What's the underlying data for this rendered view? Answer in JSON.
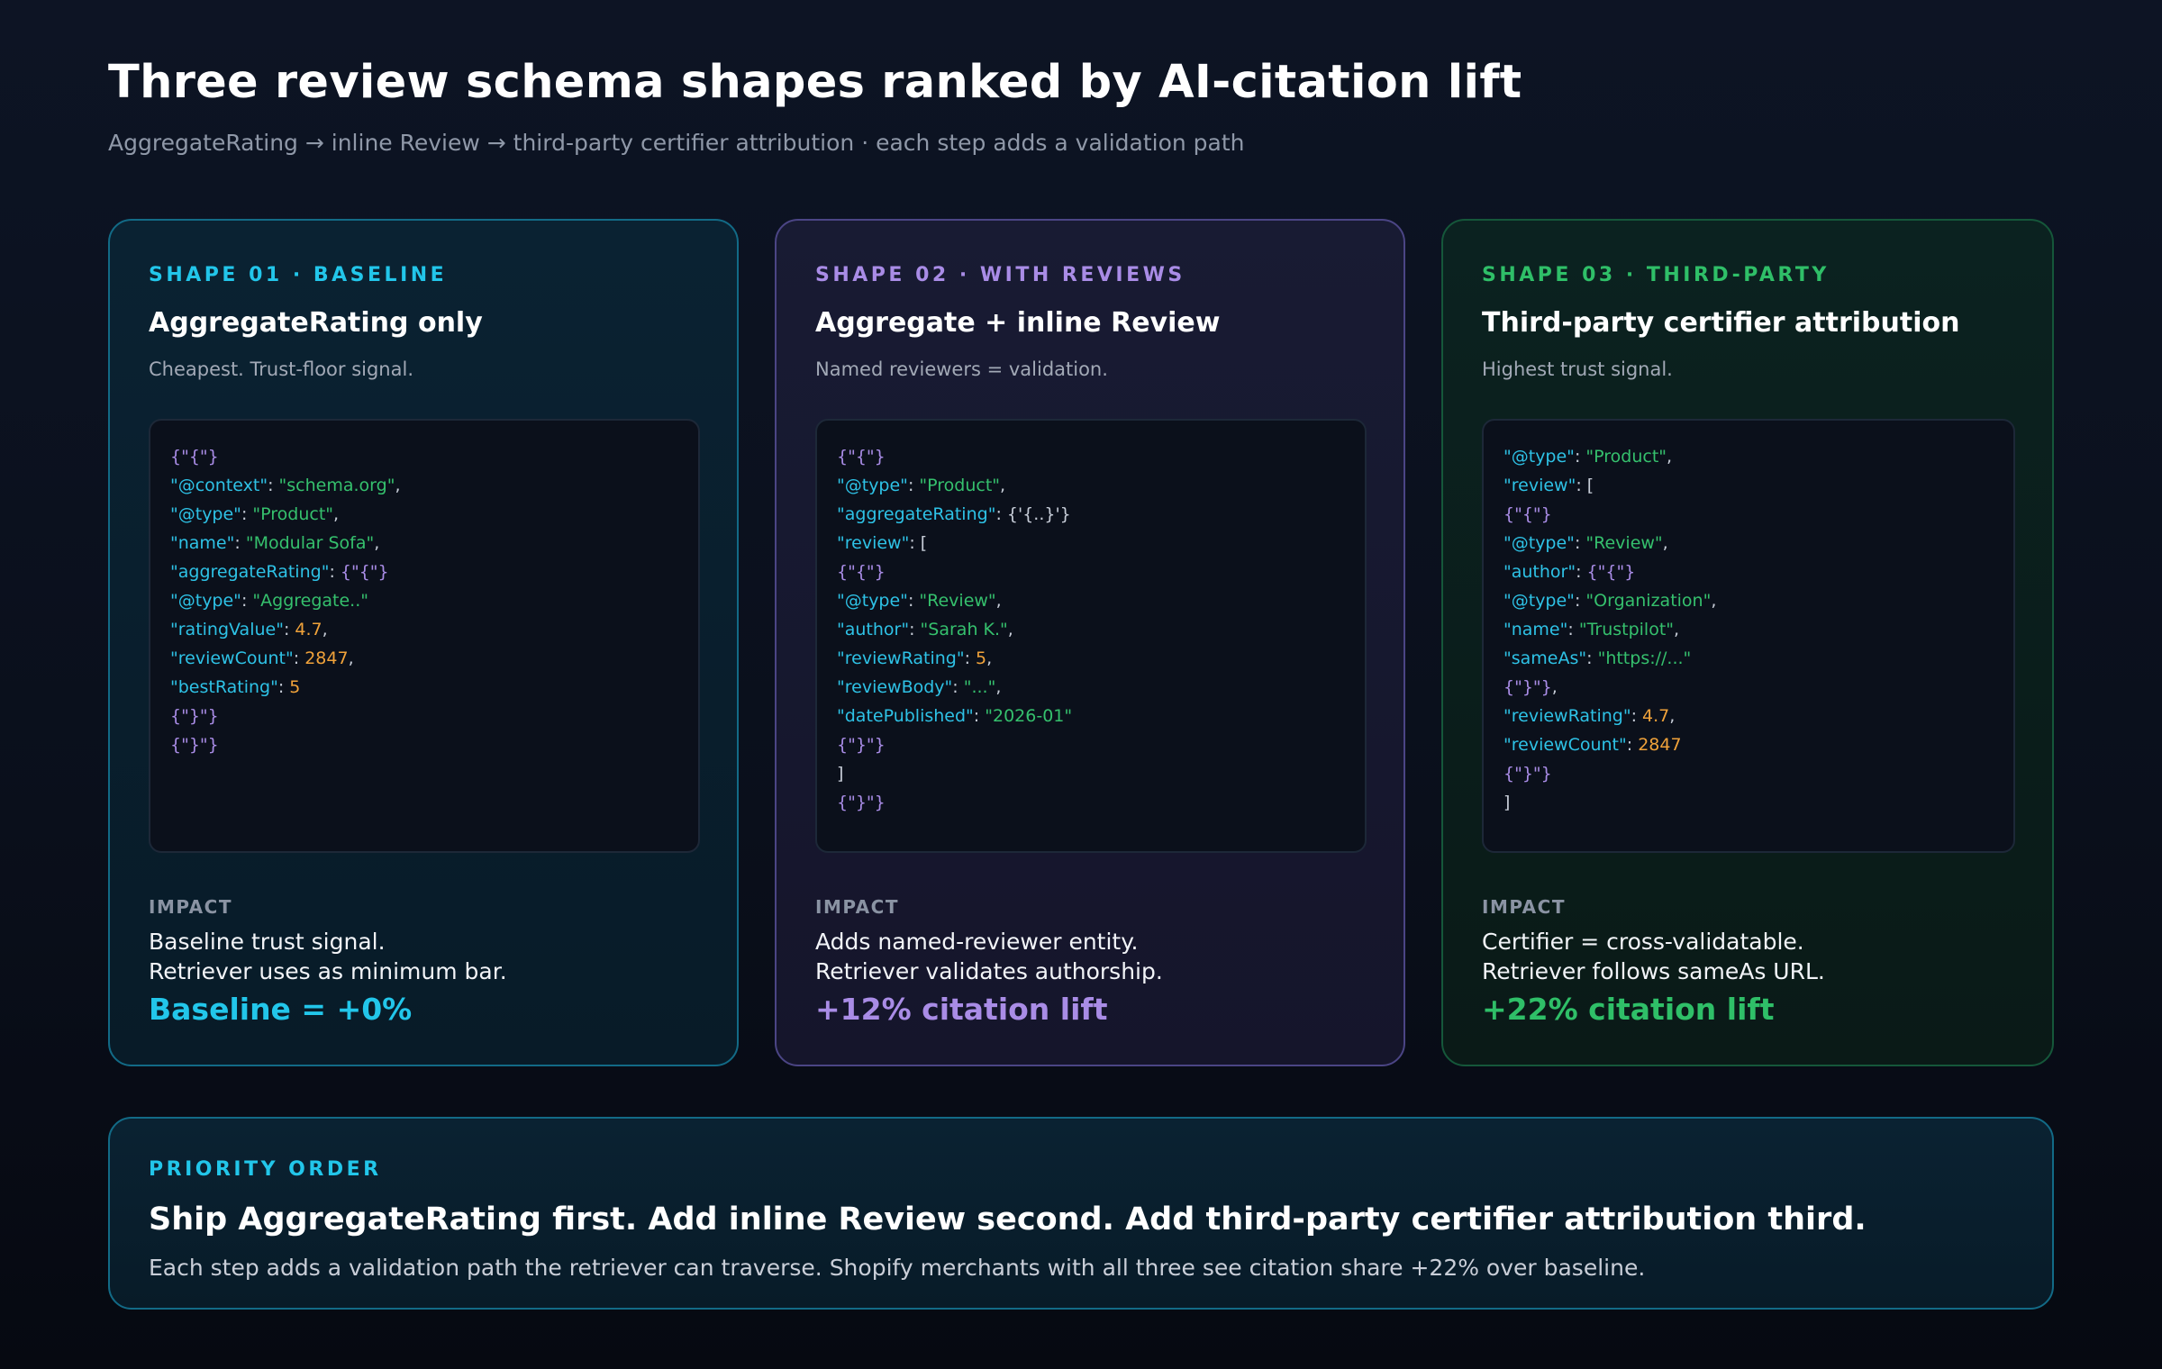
{
  "header": {
    "title": "Three review schema shapes ranked by AI-citation lift",
    "subtitle": "AggregateRating → inline Review → third-party certifier attribution · each step adds a validation path"
  },
  "colors": {
    "shape1_accent": "#22c6ea",
    "shape2_accent": "#a98ce6",
    "shape3_accent": "#2fbf68",
    "code_key": "#2ec2e6",
    "code_string": "#35c06d",
    "code_number": "#f0a23a",
    "code_brace": "#a98ce6"
  },
  "cards": [
    {
      "eyebrow": "SHAPE 01 · BASELINE",
      "title": "AggregateRating only",
      "description": "Cheapest. Trust-floor signal.",
      "code": [
        [
          {
            "t": "{\"{\"}",
            "c": "b"
          }
        ],
        [
          {
            "t": "\"@context\"",
            "c": "k"
          },
          {
            "t": ": ",
            "c": "p"
          },
          {
            "t": "\"schema.org\"",
            "c": "s"
          },
          {
            "t": ",",
            "c": "p"
          }
        ],
        [
          {
            "t": "\"@type\"",
            "c": "k"
          },
          {
            "t": ": ",
            "c": "p"
          },
          {
            "t": "\"Product\"",
            "c": "s"
          },
          {
            "t": ",",
            "c": "p"
          }
        ],
        [
          {
            "t": "\"name\"",
            "c": "k"
          },
          {
            "t": ": ",
            "c": "p"
          },
          {
            "t": "\"Modular Sofa\"",
            "c": "s"
          },
          {
            "t": ",",
            "c": "p"
          }
        ],
        [
          {
            "t": "\"aggregateRating\"",
            "c": "k"
          },
          {
            "t": ": ",
            "c": "p"
          },
          {
            "t": "{\"{\"}",
            "c": "b"
          }
        ],
        [
          {
            "t": "\"@type\"",
            "c": "k"
          },
          {
            "t": ": ",
            "c": "p"
          },
          {
            "t": "\"Aggregate..\"",
            "c": "s"
          }
        ],
        [
          {
            "t": "\"ratingValue\"",
            "c": "k"
          },
          {
            "t": ": ",
            "c": "p"
          },
          {
            "t": "4.7",
            "c": "n"
          },
          {
            "t": ",",
            "c": "p"
          }
        ],
        [
          {
            "t": "\"reviewCount\"",
            "c": "k"
          },
          {
            "t": ": ",
            "c": "p"
          },
          {
            "t": "2847",
            "c": "n"
          },
          {
            "t": ",",
            "c": "p"
          }
        ],
        [
          {
            "t": "\"bestRating\"",
            "c": "k"
          },
          {
            "t": ": ",
            "c": "p"
          },
          {
            "t": "5",
            "c": "n"
          }
        ],
        [
          {
            "t": "{\"}\"}",
            "c": "b"
          }
        ],
        [
          {
            "t": "{\"}\"}",
            "c": "b"
          }
        ]
      ],
      "impact_label": "IMPACT",
      "impact_line1": "Baseline trust signal.",
      "impact_line2": "Retriever uses as minimum bar.",
      "impact_value": "Baseline = +0%"
    },
    {
      "eyebrow": "SHAPE 02 · WITH REVIEWS",
      "title": "Aggregate + inline Review",
      "description": "Named reviewers = validation.",
      "code": [
        [
          {
            "t": "{\"{\"}",
            "c": "b"
          }
        ],
        [
          {
            "t": "\"@type\"",
            "c": "k"
          },
          {
            "t": ": ",
            "c": "p"
          },
          {
            "t": "\"Product\"",
            "c": "s"
          },
          {
            "t": ",",
            "c": "p"
          }
        ],
        [
          {
            "t": "\"aggregateRating\"",
            "c": "k"
          },
          {
            "t": ": {'{..}'}",
            "c": "p"
          }
        ],
        [
          {
            "t": "\"review\"",
            "c": "k"
          },
          {
            "t": ": [",
            "c": "p"
          }
        ],
        [
          {
            "t": "{\"{\"}",
            "c": "b"
          }
        ],
        [
          {
            "t": "\"@type\"",
            "c": "k"
          },
          {
            "t": ": ",
            "c": "p"
          },
          {
            "t": "\"Review\"",
            "c": "s"
          },
          {
            "t": ",",
            "c": "p"
          }
        ],
        [
          {
            "t": "\"author\"",
            "c": "k"
          },
          {
            "t": ": ",
            "c": "p"
          },
          {
            "t": "\"Sarah K.\"",
            "c": "s"
          },
          {
            "t": ",",
            "c": "p"
          }
        ],
        [
          {
            "t": "\"reviewRating\"",
            "c": "k"
          },
          {
            "t": ": ",
            "c": "p"
          },
          {
            "t": "5",
            "c": "n"
          },
          {
            "t": ",",
            "c": "p"
          }
        ],
        [
          {
            "t": "\"reviewBody\"",
            "c": "k"
          },
          {
            "t": ": ",
            "c": "p"
          },
          {
            "t": "\"...\"",
            "c": "s"
          },
          {
            "t": ",",
            "c": "p"
          }
        ],
        [
          {
            "t": "\"datePublished\"",
            "c": "k"
          },
          {
            "t": ": ",
            "c": "p"
          },
          {
            "t": "\"2026-01\"",
            "c": "s"
          }
        ],
        [
          {
            "t": "{\"}\"}",
            "c": "b"
          }
        ],
        [
          {
            "t": "]",
            "c": "p"
          }
        ],
        [
          {
            "t": "{\"}\"}",
            "c": "b"
          }
        ]
      ],
      "impact_label": "IMPACT",
      "impact_line1": "Adds named-reviewer entity.",
      "impact_line2": "Retriever validates authorship.",
      "impact_value": "+12% citation lift"
    },
    {
      "eyebrow": "SHAPE 03 · THIRD-PARTY",
      "title": "Third-party certifier attribution",
      "description": "Highest trust signal.",
      "code": [
        [
          {
            "t": "\"@type\"",
            "c": "k"
          },
          {
            "t": ": ",
            "c": "p"
          },
          {
            "t": "\"Product\"",
            "c": "s"
          },
          {
            "t": ",",
            "c": "p"
          }
        ],
        [
          {
            "t": "\"review\"",
            "c": "k"
          },
          {
            "t": ": [",
            "c": "p"
          }
        ],
        [
          {
            "t": "{\"{\"}",
            "c": "b"
          }
        ],
        [
          {
            "t": "\"@type\"",
            "c": "k"
          },
          {
            "t": ": ",
            "c": "p"
          },
          {
            "t": "\"Review\"",
            "c": "s"
          },
          {
            "t": ",",
            "c": "p"
          }
        ],
        [
          {
            "t": "\"author\"",
            "c": "k"
          },
          {
            "t": ": ",
            "c": "p"
          },
          {
            "t": "{\"{\"}",
            "c": "b"
          }
        ],
        [
          {
            "t": "\"@type\"",
            "c": "k"
          },
          {
            "t": ": ",
            "c": "p"
          },
          {
            "t": "\"Organization\"",
            "c": "s"
          },
          {
            "t": ",",
            "c": "p"
          }
        ],
        [
          {
            "t": "\"name\"",
            "c": "k"
          },
          {
            "t": ": ",
            "c": "p"
          },
          {
            "t": "\"Trustpilot\"",
            "c": "s"
          },
          {
            "t": ",",
            "c": "p"
          }
        ],
        [
          {
            "t": "\"sameAs\"",
            "c": "k"
          },
          {
            "t": ": ",
            "c": "p"
          },
          {
            "t": "\"https://...\"",
            "c": "s"
          }
        ],
        [
          {
            "t": "{\"}\"}",
            "c": "b"
          },
          {
            "t": ",",
            "c": "p"
          }
        ],
        [
          {
            "t": "\"reviewRating\"",
            "c": "k"
          },
          {
            "t": ": ",
            "c": "p"
          },
          {
            "t": "4.7",
            "c": "n"
          },
          {
            "t": ",",
            "c": "p"
          }
        ],
        [
          {
            "t": "\"reviewCount\"",
            "c": "k"
          },
          {
            "t": ": ",
            "c": "p"
          },
          {
            "t": "2847",
            "c": "n"
          }
        ],
        [
          {
            "t": "{\"}\"}",
            "c": "b"
          }
        ],
        [
          {
            "t": "]",
            "c": "p"
          }
        ]
      ],
      "impact_label": "IMPACT",
      "impact_line1": "Certifier = cross-validatable.",
      "impact_line2": "Retriever follows sameAs URL.",
      "impact_value": "+22% citation lift"
    }
  ],
  "priority": {
    "label": "PRIORITY ORDER",
    "headline": "Ship AggregateRating first. Add inline Review second. Add third-party certifier attribution third.",
    "body": "Each step adds a validation path the retriever can traverse. Shopify merchants with all three see citation share +22% over baseline."
  }
}
